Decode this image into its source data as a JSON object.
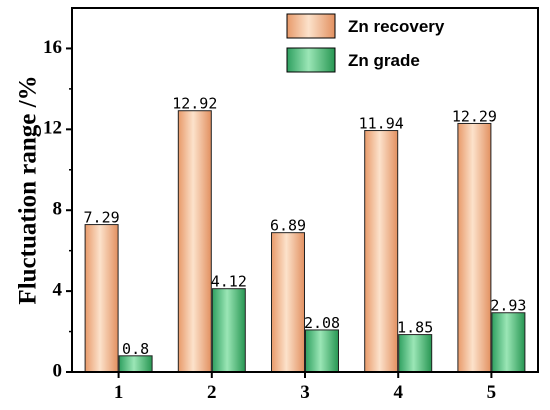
{
  "chart_data": {
    "type": "bar",
    "categories": [
      "1",
      "2",
      "3",
      "4",
      "5"
    ],
    "series": [
      {
        "name": "Zn recovery",
        "values": [
          7.29,
          12.92,
          6.89,
          11.94,
          12.29
        ],
        "labels": [
          "7.29",
          "12.92",
          "6.89",
          "11.94",
          "12.29"
        ],
        "color": "#F3B88C"
      },
      {
        "name": "Zn grade",
        "values": [
          0.8,
          4.12,
          2.08,
          1.85,
          2.93
        ],
        "labels": [
          "0.8",
          "4.12",
          "2.08",
          "1.85",
          "2.93"
        ],
        "color": "#4DBE7F"
      }
    ],
    "title": "",
    "xlabel": "",
    "ylabel": "Fluctuation range /%",
    "ylim": [
      0,
      18
    ],
    "yticks": [
      0,
      4,
      8,
      12,
      16
    ],
    "grid": false,
    "legend": "top-right"
  }
}
